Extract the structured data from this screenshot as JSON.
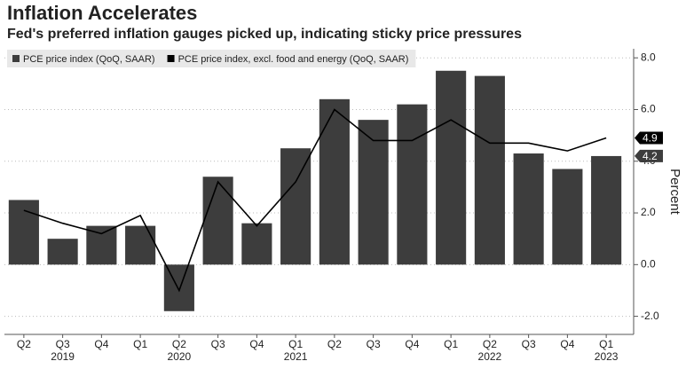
{
  "chart_data": {
    "type": "bar-line",
    "title": "Inflation Accelerates",
    "subtitle": "Fed's preferred inflation gauges picked up, indicating sticky price pressures",
    "y_label": "Percent",
    "categories": [
      "Q2",
      "Q3",
      "Q4",
      "Q1",
      "Q2",
      "Q3",
      "Q4",
      "Q1",
      "Q2",
      "Q3",
      "Q4",
      "Q1",
      "Q2",
      "Q3",
      "Q4",
      "Q1"
    ],
    "years": [
      null,
      "2019",
      null,
      null,
      "2020",
      null,
      null,
      "2021",
      null,
      null,
      null,
      null,
      "2022",
      null,
      null,
      "2023"
    ],
    "series": [
      {
        "name": "PCE price index (QoQ, SAAR)",
        "kind": "bar",
        "color": "#3d3d3d",
        "values": [
          2.5,
          1.0,
          1.5,
          1.5,
          -1.8,
          3.4,
          1.6,
          4.5,
          6.4,
          5.6,
          6.2,
          7.5,
          7.3,
          4.3,
          3.7,
          4.2
        ]
      },
      {
        "name": "PCE price index, excl. food and energy (QoQ, SAAR)",
        "kind": "line",
        "color": "#000000",
        "values": [
          2.1,
          1.6,
          1.2,
          1.9,
          -1.0,
          3.2,
          1.5,
          3.2,
          6.0,
          4.8,
          4.8,
          5.6,
          4.7,
          4.7,
          4.4,
          4.9
        ]
      }
    ],
    "ylim": [
      -2.7,
      8.35
    ],
    "yticks": [
      {
        "value": -2,
        "label": "-2.0"
      },
      {
        "value": 0,
        "label": "0.0"
      },
      {
        "value": 2,
        "label": "2.0"
      },
      {
        "value": 4,
        "label": "4.0"
      },
      {
        "value": 6,
        "label": "6.0"
      },
      {
        "value": 8,
        "label": "8.0"
      }
    ],
    "grid": true,
    "legend": "top-left"
  }
}
